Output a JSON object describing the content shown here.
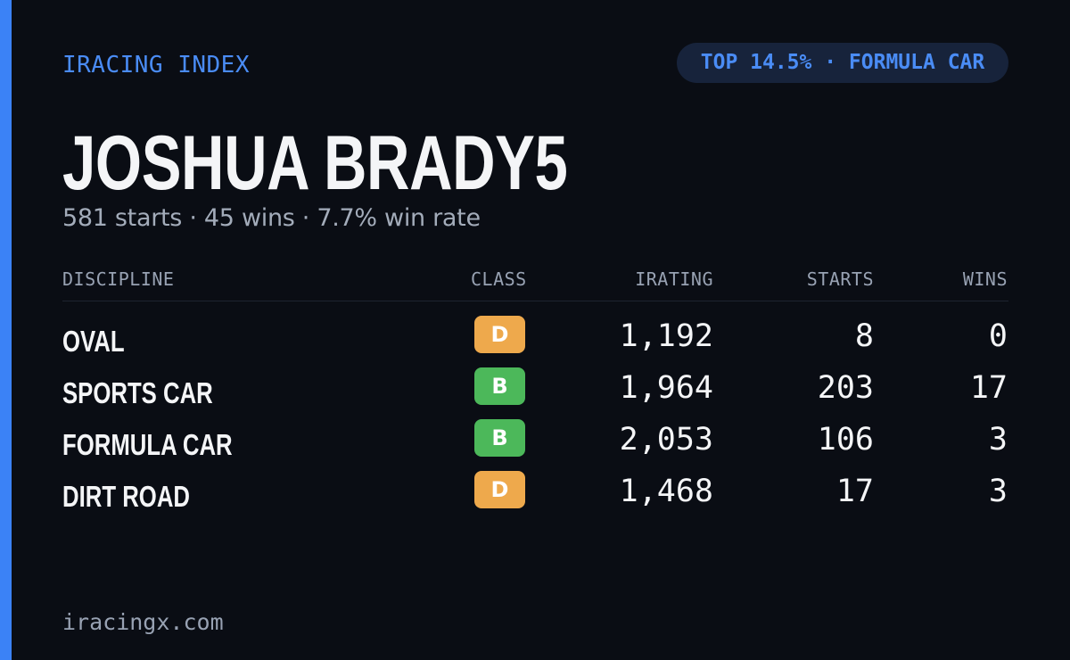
{
  "header": {
    "brand": "IRACING INDEX",
    "badge": "TOP 14.5% · FORMULA CAR"
  },
  "profile": {
    "name": "JOSHUA BRADY5",
    "summary": "581 starts · 45 wins · 7.7% win rate"
  },
  "table": {
    "columns": {
      "discipline": "DISCIPLINE",
      "class": "CLASS",
      "irating": "IRATING",
      "starts": "STARTS",
      "wins": "WINS"
    },
    "rows": [
      {
        "discipline": "OVAL",
        "class": "D",
        "irating": "1,192",
        "starts": "8",
        "wins": "0"
      },
      {
        "discipline": "SPORTS CAR",
        "class": "B",
        "irating": "1,964",
        "starts": "203",
        "wins": "17"
      },
      {
        "discipline": "FORMULA CAR",
        "class": "B",
        "irating": "2,053",
        "starts": "106",
        "wins": "3"
      },
      {
        "discipline": "DIRT ROAD",
        "class": "D",
        "irating": "1,468",
        "starts": "17",
        "wins": "3"
      }
    ]
  },
  "colors": {
    "accent": "#3b82f6",
    "class_d": "#eea94c",
    "class_b": "#4cb85a"
  },
  "footer": {
    "site": "iracingx.com"
  }
}
